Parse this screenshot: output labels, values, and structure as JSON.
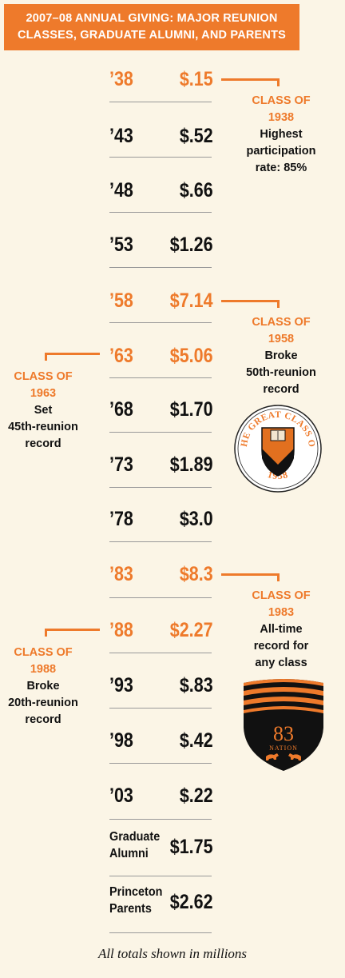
{
  "title": "2007–08 ANNUAL GIVING: MAJOR REUNION\nCLASSES, GRADUATE ALUMNI, AND PARENTS",
  "footnote": "All totals shown in millions",
  "colors": {
    "accent": "#ee7a2b",
    "text": "#111111",
    "background": "#fbf5e6"
  },
  "chart_data": {
    "type": "table",
    "title": "2007–08 ANNUAL GIVING: MAJOR REUNION CLASSES, GRADUATE ALUMNI, AND PARENTS",
    "unit": "millions",
    "rows": [
      {
        "label": "’38",
        "display": "$.15",
        "value": 0.15,
        "highlight": true
      },
      {
        "label": "’43",
        "display": "$.52",
        "value": 0.52,
        "highlight": false
      },
      {
        "label": "’48",
        "display": "$.66",
        "value": 0.66,
        "highlight": false
      },
      {
        "label": "’53",
        "display": "$1.26",
        "value": 1.26,
        "highlight": false
      },
      {
        "label": "’58",
        "display": "$7.14",
        "value": 7.14,
        "highlight": true
      },
      {
        "label": "’63",
        "display": "$5.06",
        "value": 5.06,
        "highlight": true
      },
      {
        "label": "’68",
        "display": "$1.70",
        "value": 1.7,
        "highlight": false
      },
      {
        "label": "’73",
        "display": "$1.89",
        "value": 1.89,
        "highlight": false
      },
      {
        "label": "’78",
        "display": "$3.0",
        "value": 3.0,
        "highlight": false
      },
      {
        "label": "’83",
        "display": "$8.3",
        "value": 8.3,
        "highlight": true
      },
      {
        "label": "’88",
        "display": "$2.27",
        "value": 2.27,
        "highlight": true
      },
      {
        "label": "’93",
        "display": "$.83",
        "value": 0.83,
        "highlight": false
      },
      {
        "label": "’98",
        "display": "$.42",
        "value": 0.42,
        "highlight": false
      },
      {
        "label": "’03",
        "display": "$.22",
        "value": 0.22,
        "highlight": false
      },
      {
        "label": "Graduate\nAlumni",
        "display": "$1.75",
        "value": 1.75,
        "highlight": false
      },
      {
        "label": "Princeton\nParents",
        "display": "$2.62",
        "value": 2.62,
        "highlight": false
      }
    ],
    "annotations": [
      {
        "row": "’38",
        "title": "CLASS OF\n1938",
        "text": "Highest\nparticipation\nrate: 85%"
      },
      {
        "row": "’58",
        "title": "CLASS OF\n1958",
        "text": "Broke\n50th-reunion\nrecord"
      },
      {
        "row": "’63",
        "title": "CLASS OF\n1963",
        "text": "Set\n45th-reunion\nrecord"
      },
      {
        "row": "’83",
        "title": "CLASS OF\n1983",
        "text": "All-time\nrecord for\nany class"
      },
      {
        "row": "’88",
        "title": "CLASS OF\n1988",
        "text": "Broke\n20th-reunion\nrecord"
      }
    ]
  },
  "emblems": [
    {
      "name": "great-class-seal",
      "ring_text": "THE GREAT CLASS OF",
      "year_text": "1958"
    },
    {
      "name": "nation-shield",
      "number_text": "83",
      "word_text": "NATION"
    }
  ]
}
